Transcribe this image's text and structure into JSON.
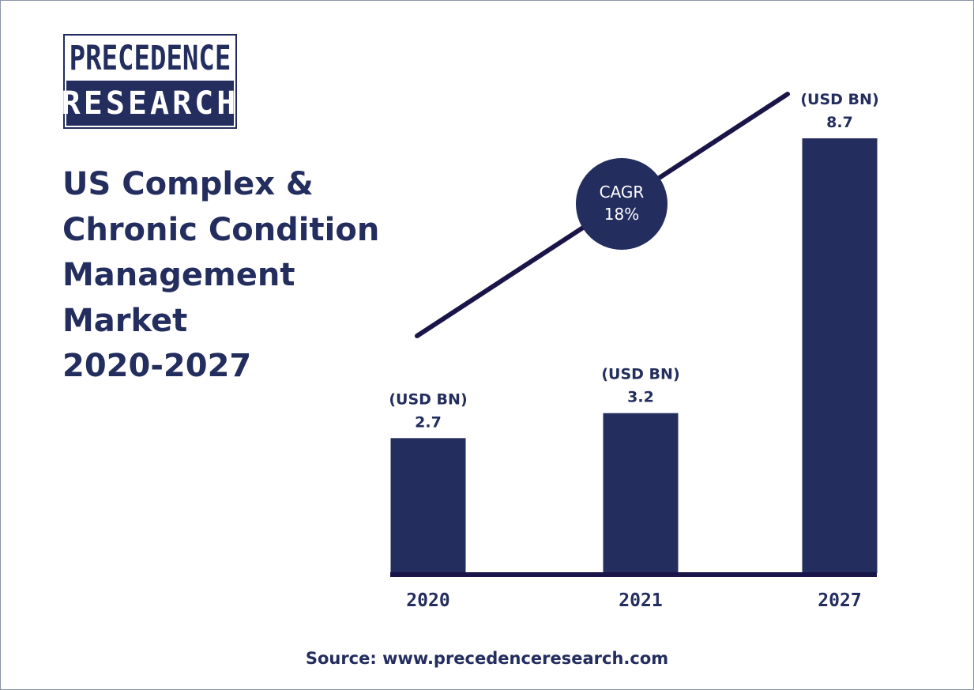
{
  "logo": {
    "line1": "PRECEDENCE",
    "line2": "RESEARCH"
  },
  "title_lines": [
    "US Complex &",
    "Chronic Condition",
    "Management",
    "Market",
    "2020-2027"
  ],
  "cagr": {
    "label": "CAGR",
    "value": "18%"
  },
  "source": "Source: www.precedenceresearch.com",
  "colors": {
    "primary": "#232d5e",
    "background": "#ffffff"
  },
  "chart_data": {
    "type": "bar",
    "categories": [
      "2020",
      "2021",
      "2027"
    ],
    "values": [
      2.7,
      3.2,
      8.7
    ],
    "unit_label": "(USD BN)",
    "value_labels": [
      "2.7",
      "3.2",
      "8.7"
    ],
    "ylim": [
      0,
      8.7
    ],
    "grid": false,
    "trend_line": true
  }
}
